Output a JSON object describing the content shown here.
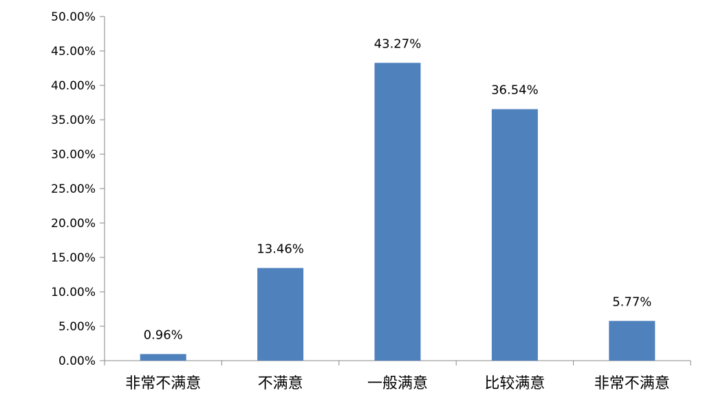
{
  "chart_data": {
    "type": "bar",
    "categories": [
      "非常不满意",
      "不满意",
      "一般满意",
      "比较满意",
      "非常不满意"
    ],
    "values": [
      0.96,
      13.46,
      43.27,
      36.54,
      5.77
    ],
    "data_labels": [
      "0.96%",
      "13.46%",
      "43.27%",
      "36.54%",
      "5.77%"
    ],
    "y_ticks": [
      "0.00%",
      "5.00%",
      "10.00%",
      "15.00%",
      "20.00%",
      "25.00%",
      "30.00%",
      "35.00%",
      "40.00%",
      "45.00%",
      "50.00%"
    ],
    "ylim": [
      0,
      50
    ],
    "grid": false,
    "legend": "none",
    "bar_color": "#4f81bd",
    "axis_color": "#868686"
  }
}
